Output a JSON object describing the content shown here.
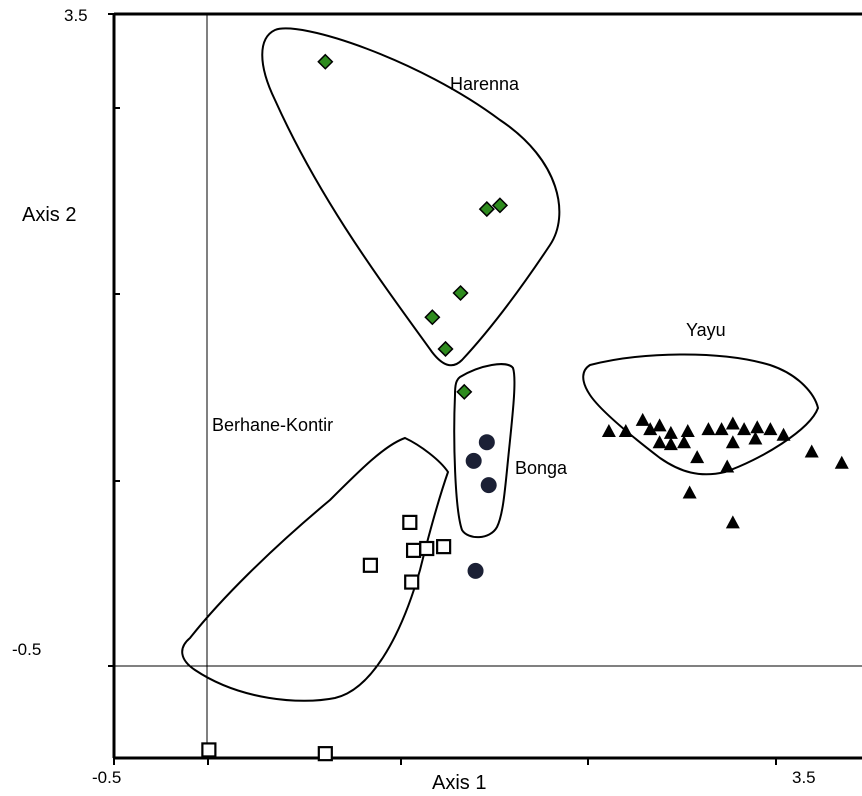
{
  "chart_data": {
    "type": "scatter",
    "xlabel": "Axis 1",
    "ylabel": "Axis 2",
    "xlim": [
      -0.5,
      3.5
    ],
    "ylim": [
      -1.0,
      3.5
    ],
    "x_tick_labels": [
      "-0.5",
      "3.5"
    ],
    "y_tick_labels": [
      "3.5",
      "-0.5"
    ],
    "reference_lines": {
      "x": 0,
      "y": 0
    },
    "grid": false,
    "legend": "none",
    "series": [
      {
        "name": "Harenna",
        "marker": "diamond",
        "color": "#2e8b1e",
        "points": [
          [
            0.63,
            3.24
          ],
          [
            1.49,
            2.45
          ],
          [
            1.56,
            2.47
          ],
          [
            1.35,
            2.0
          ],
          [
            1.2,
            1.87
          ],
          [
            1.27,
            1.7
          ],
          [
            1.37,
            1.47
          ]
        ]
      },
      {
        "name": "Bonga",
        "marker": "circle",
        "color": "#1b2035",
        "points": [
          [
            1.49,
            1.2
          ],
          [
            1.42,
            1.1
          ],
          [
            1.5,
            0.97
          ],
          [
            1.43,
            0.51
          ]
        ]
      },
      {
        "name": "Yayu",
        "marker": "triangle",
        "color": "#000000",
        "points": [
          [
            2.14,
            1.26
          ],
          [
            2.23,
            1.26
          ],
          [
            2.32,
            1.32
          ],
          [
            2.36,
            1.27
          ],
          [
            2.41,
            1.29
          ],
          [
            2.47,
            1.25
          ],
          [
            2.56,
            1.26
          ],
          [
            2.67,
            1.27
          ],
          [
            2.74,
            1.27
          ],
          [
            2.8,
            1.3
          ],
          [
            2.86,
            1.27
          ],
          [
            2.93,
            1.28
          ],
          [
            3.0,
            1.27
          ],
          [
            3.07,
            1.24
          ],
          [
            2.41,
            1.2
          ],
          [
            2.47,
            1.19
          ],
          [
            2.54,
            1.2
          ],
          [
            2.8,
            1.2
          ],
          [
            2.92,
            1.22
          ],
          [
            3.22,
            1.15
          ],
          [
            2.61,
            1.12
          ],
          [
            2.77,
            1.07
          ],
          [
            3.38,
            1.09
          ],
          [
            2.57,
            0.93
          ],
          [
            2.8,
            0.77
          ]
        ]
      },
      {
        "name": "Berhane-Kontir",
        "marker": "square-open",
        "color": "#000000",
        "points": [
          [
            1.08,
            0.77
          ],
          [
            1.17,
            0.63
          ],
          [
            1.26,
            0.64
          ],
          [
            1.1,
            0.62
          ],
          [
            0.87,
            0.54
          ],
          [
            1.09,
            0.45
          ],
          [
            0.01,
            -0.45
          ],
          [
            0.63,
            -0.47
          ]
        ]
      }
    ],
    "hull_labels": [
      "Harenna",
      "Yayu",
      "Bonga",
      "Berhane-Kontir"
    ]
  }
}
